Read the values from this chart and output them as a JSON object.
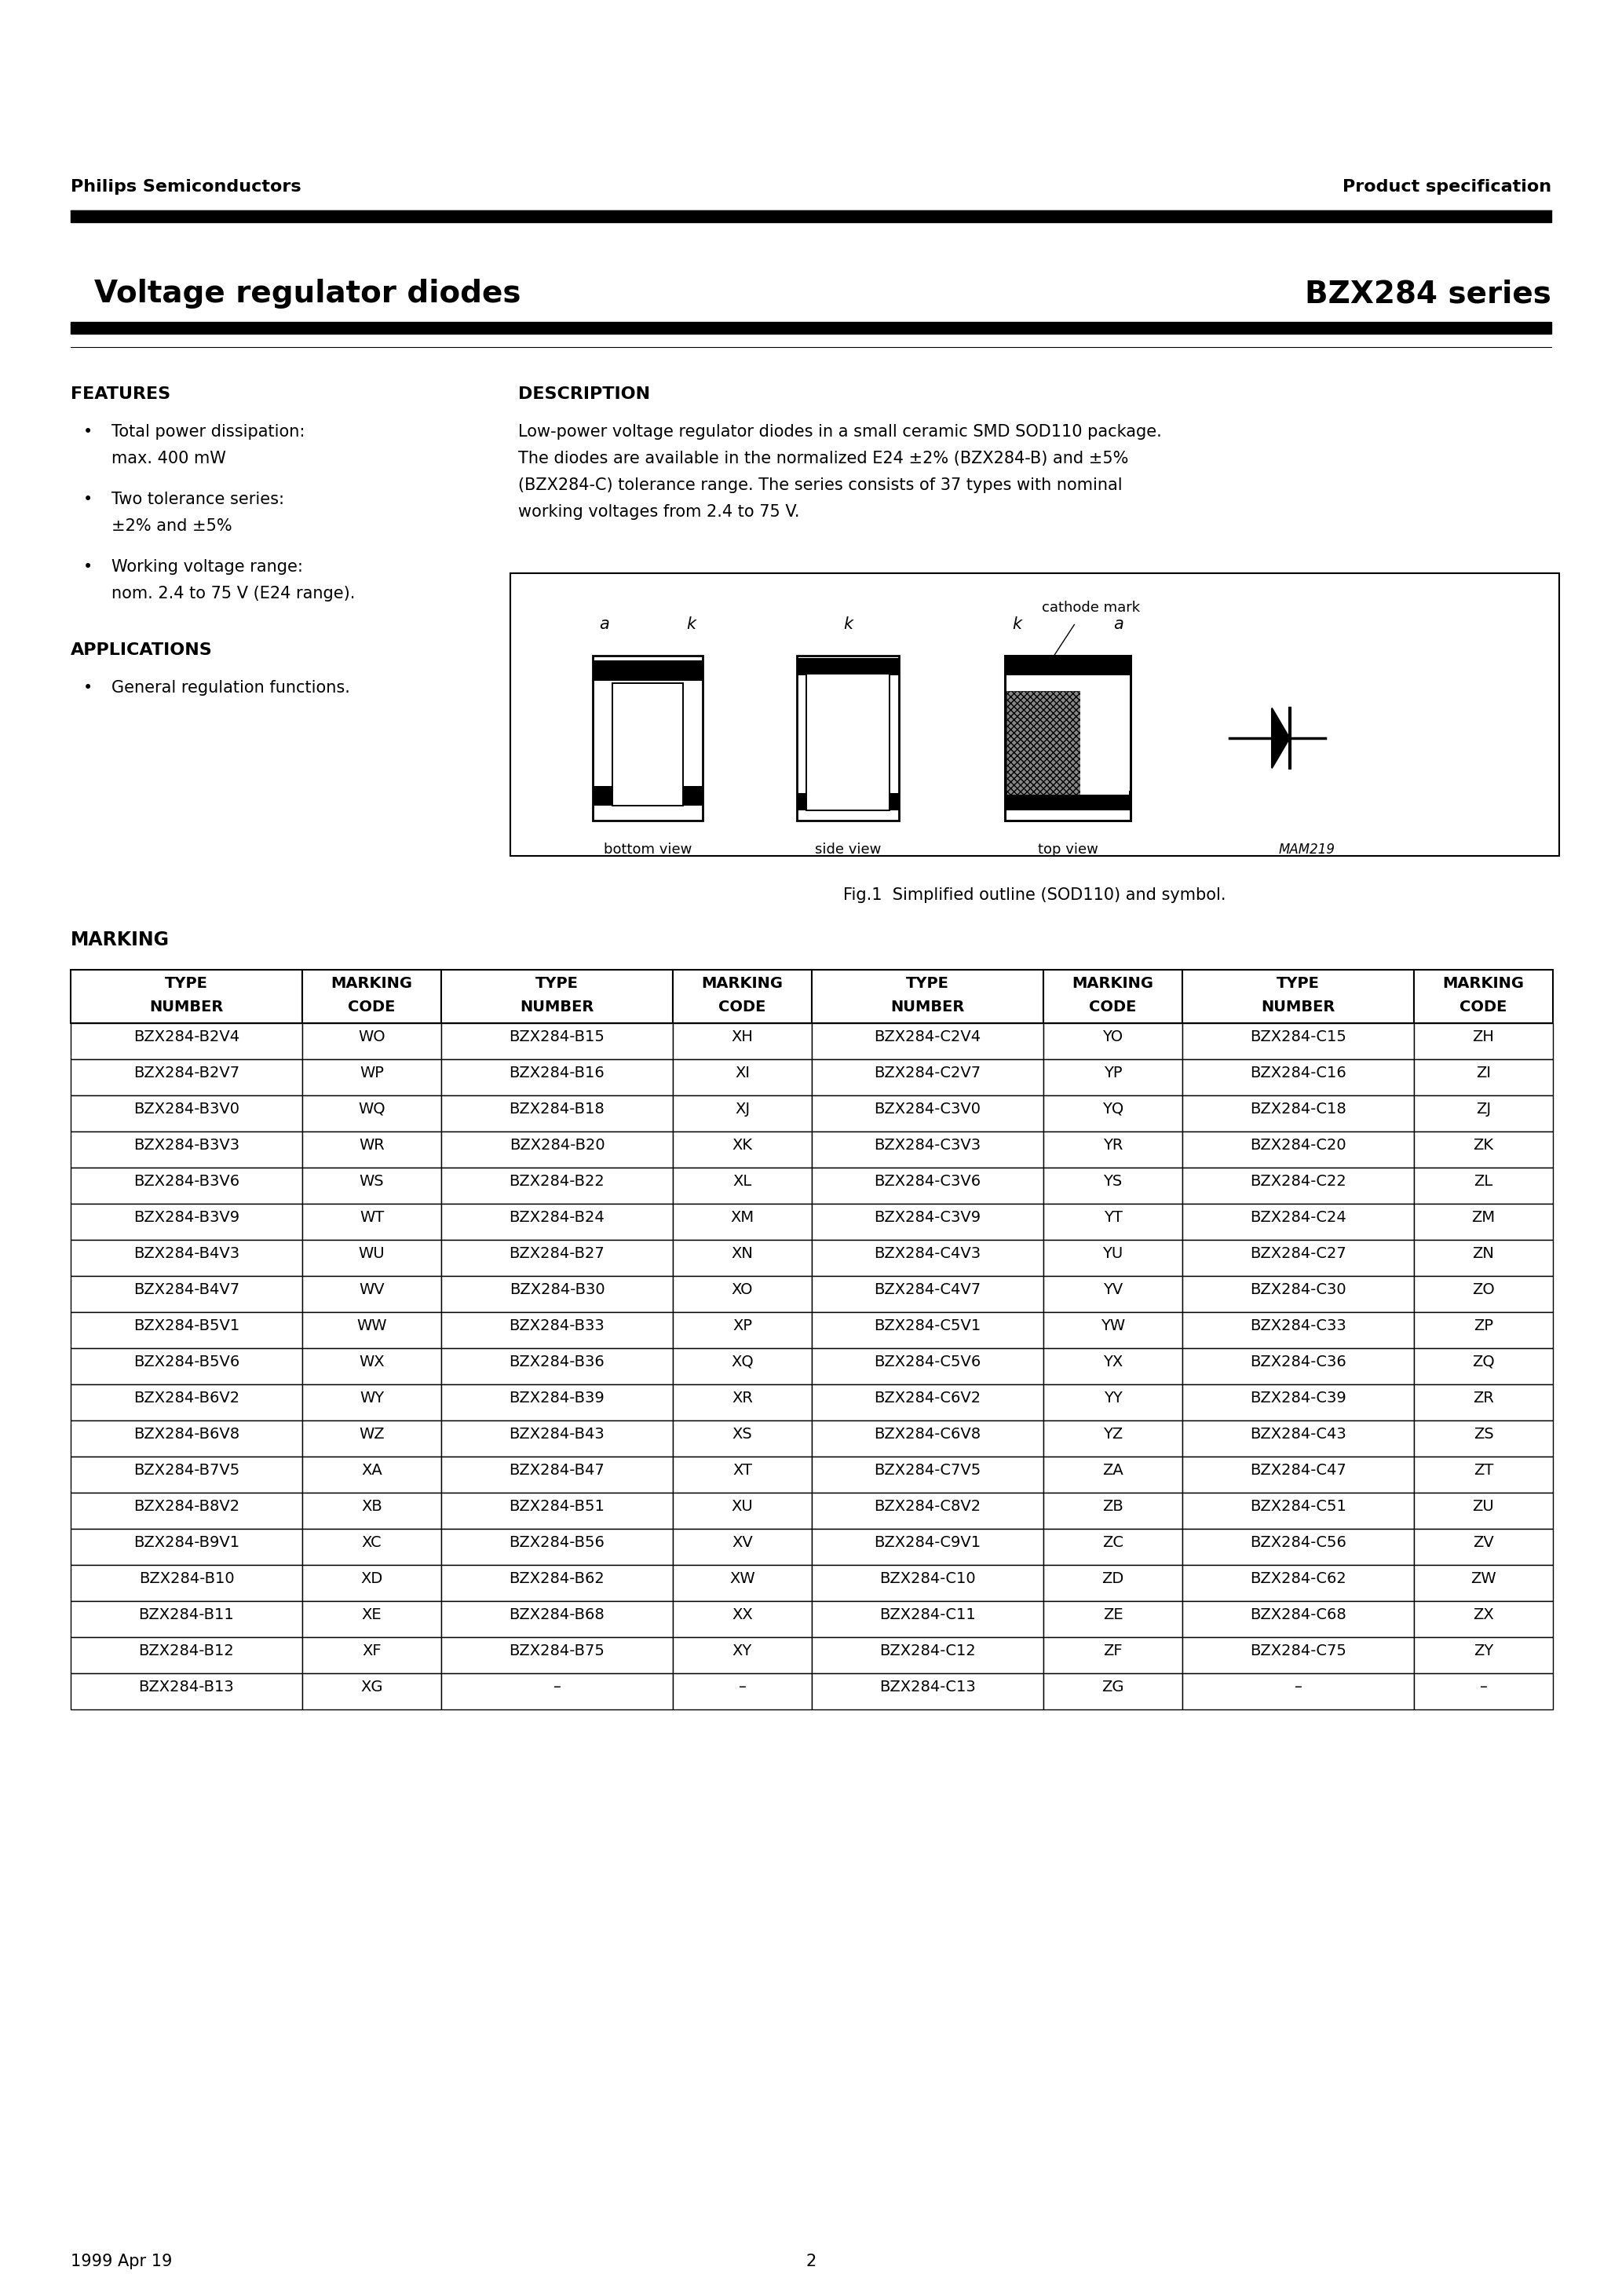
{
  "page_title_left": "Voltage regulator diodes",
  "page_title_right": "BZX284 series",
  "header_left": "Philips Semiconductors",
  "header_right": "Product specification",
  "features_title": "FEATURES",
  "features": [
    [
      "Total power dissipation:",
      "max. 400 mW"
    ],
    [
      "Two tolerance series:",
      "±2% and ±5%"
    ],
    [
      "Working voltage range:",
      "nom. 2.4 to 75 V (E24 range)."
    ]
  ],
  "applications_title": "APPLICATIONS",
  "applications": [
    "General regulation functions."
  ],
  "description_title": "DESCRIPTION",
  "description_lines": [
    "Low-power voltage regulator diodes in a small ceramic SMD SOD110 package.",
    "The diodes are available in the normalized E24 ±2% (BZX284-B) and ±5%",
    "(BZX284-C) tolerance range. The series consists of 37 types with nominal",
    "working voltages from 2.4 to 75 V."
  ],
  "fig_caption": "Fig.1  Simplified outline (SOD110) and symbol.",
  "marking_title": "MARKING",
  "table_headers": [
    "TYPE\nNUMBER",
    "MARKING\nCODE",
    "TYPE\nNUMBER",
    "MARKING\nCODE",
    "TYPE\nNUMBER",
    "MARKING\nCODE",
    "TYPE\nNUMBER",
    "MARKING\nCODE"
  ],
  "table_data": [
    [
      "BZX284-B2V4",
      "WO",
      "BZX284-B15",
      "XH",
      "BZX284-C2V4",
      "YO",
      "BZX284-C15",
      "ZH"
    ],
    [
      "BZX284-B2V7",
      "WP",
      "BZX284-B16",
      "XI",
      "BZX284-C2V7",
      "YP",
      "BZX284-C16",
      "ZI"
    ],
    [
      "BZX284-B3V0",
      "WQ",
      "BZX284-B18",
      "XJ",
      "BZX284-C3V0",
      "YQ",
      "BZX284-C18",
      "ZJ"
    ],
    [
      "BZX284-B3V3",
      "WR",
      "BZX284-B20",
      "XK",
      "BZX284-C3V3",
      "YR",
      "BZX284-C20",
      "ZK"
    ],
    [
      "BZX284-B3V6",
      "WS",
      "BZX284-B22",
      "XL",
      "BZX284-C3V6",
      "YS",
      "BZX284-C22",
      "ZL"
    ],
    [
      "BZX284-B3V9",
      "WT",
      "BZX284-B24",
      "XM",
      "BZX284-C3V9",
      "YT",
      "BZX284-C24",
      "ZM"
    ],
    [
      "BZX284-B4V3",
      "WU",
      "BZX284-B27",
      "XN",
      "BZX284-C4V3",
      "YU",
      "BZX284-C27",
      "ZN"
    ],
    [
      "BZX284-B4V7",
      "WV",
      "BZX284-B30",
      "XO",
      "BZX284-C4V7",
      "YV",
      "BZX284-C30",
      "ZO"
    ],
    [
      "BZX284-B5V1",
      "WW",
      "BZX284-B33",
      "XP",
      "BZX284-C5V1",
      "YW",
      "BZX284-C33",
      "ZP"
    ],
    [
      "BZX284-B5V6",
      "WX",
      "BZX284-B36",
      "XQ",
      "BZX284-C5V6",
      "YX",
      "BZX284-C36",
      "ZQ"
    ],
    [
      "BZX284-B6V2",
      "WY",
      "BZX284-B39",
      "XR",
      "BZX284-C6V2",
      "YY",
      "BZX284-C39",
      "ZR"
    ],
    [
      "BZX284-B6V8",
      "WZ",
      "BZX284-B43",
      "XS",
      "BZX284-C6V8",
      "YZ",
      "BZX284-C43",
      "ZS"
    ],
    [
      "BZX284-B7V5",
      "XA",
      "BZX284-B47",
      "XT",
      "BZX284-C7V5",
      "ZA",
      "BZX284-C47",
      "ZT"
    ],
    [
      "BZX284-B8V2",
      "XB",
      "BZX284-B51",
      "XU",
      "BZX284-C8V2",
      "ZB",
      "BZX284-C51",
      "ZU"
    ],
    [
      "BZX284-B9V1",
      "XC",
      "BZX284-B56",
      "XV",
      "BZX284-C9V1",
      "ZC",
      "BZX284-C56",
      "ZV"
    ],
    [
      "BZX284-B10",
      "XD",
      "BZX284-B62",
      "XW",
      "BZX284-C10",
      "ZD",
      "BZX284-C62",
      "ZW"
    ],
    [
      "BZX284-B11",
      "XE",
      "BZX284-B68",
      "XX",
      "BZX284-C11",
      "ZE",
      "BZX284-C68",
      "ZX"
    ],
    [
      "BZX284-B12",
      "XF",
      "BZX284-B75",
      "XY",
      "BZX284-C12",
      "ZF",
      "BZX284-C75",
      "ZY"
    ],
    [
      "BZX284-B13",
      "XG",
      "–",
      "–",
      "BZX284-C13",
      "ZG",
      "–",
      "–"
    ]
  ],
  "footer_left": "1999 Apr 19",
  "footer_page": "2",
  "bg": "#ffffff"
}
